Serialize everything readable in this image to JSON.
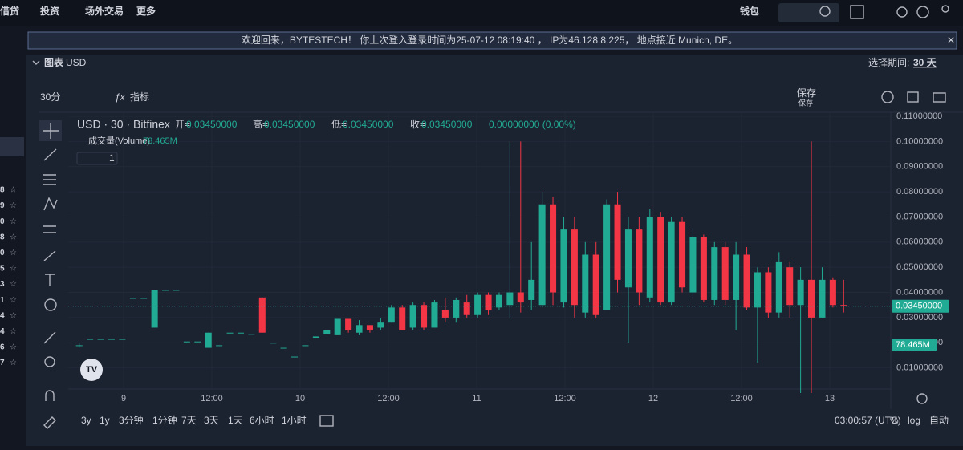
{
  "nav": {
    "items": [
      "借贷",
      "投资",
      "场外交易",
      "更多"
    ],
    "wallet": "钱包"
  },
  "banner": "欢迎回来，BYTESTECH！ 你上次登入登录时间为25-07-12 08:19:40 ， IP为46.128.8.225， 地点接近 Munich, DE。",
  "sidebar_digits": [
    "8",
    "9",
    "0",
    "8",
    "0",
    "5",
    "3",
    "1",
    "4",
    "4",
    "6",
    "7"
  ],
  "header": {
    "title": "图表",
    "currency": "USD",
    "period_label": "选择期间:",
    "period": "30 天"
  },
  "toolbar": {
    "interval": "30分",
    "indicators": "指标",
    "save": "保存",
    "save_sub": "保存"
  },
  "legend": {
    "symbol": "USD · 30 · Bitfinex",
    "open_label": "开=",
    "open": "0.03450000",
    "high_label": "高=",
    "high": "0.03450000",
    "low_label": "低=",
    "low": "0.03450000",
    "close_label": "收=",
    "close": "0.03450000",
    "change": "0.00000000 (0.00%)",
    "volume_label": "成交量(Volume)",
    "volume": "78.465M",
    "layers": "1"
  },
  "chart_data": {
    "type": "candlestick",
    "up_color": "#22ab94",
    "down_color": "#f23645",
    "ylim": [
      0,
      0.11
    ],
    "yticks": [
      {
        "value": 0.01,
        "label": "0.01000000"
      },
      {
        "value": 0.02,
        "label": "0.02000000"
      },
      {
        "value": 0.03,
        "label": "0.03000000"
      },
      {
        "value": 0.04,
        "label": "0.04000000"
      },
      {
        "value": 0.05,
        "label": "0.05000000"
      },
      {
        "value": 0.06,
        "label": "0.06000000"
      },
      {
        "value": 0.07,
        "label": "0.07000000"
      },
      {
        "value": 0.08,
        "label": "0.08000000"
      },
      {
        "value": 0.09,
        "label": "0.09000000"
      },
      {
        "value": 0.1,
        "label": "0.10000000"
      },
      {
        "value": 0.11,
        "label": "0.11000000"
      }
    ],
    "xlabels": [
      "9",
      "12:00",
      "10",
      "12:00",
      "11",
      "12:00",
      "12",
      "12:00",
      "13"
    ],
    "last_price": {
      "value": 0.0345,
      "label": "0.03450000"
    },
    "volume_tag": "78.465M",
    "candles": [
      [
        0.019,
        0.02,
        0.018,
        0.019
      ],
      [
        0.0215,
        0.0215,
        0.0215,
        0.0215
      ],
      [
        0.0215,
        0.0215,
        0.0215,
        0.0215
      ],
      [
        0.0215,
        0.0215,
        0.0215,
        0.0215
      ],
      [
        0.0215,
        0.0215,
        0.0215,
        0.0215
      ],
      [
        0.0378,
        0.0378,
        0.0378,
        0.0378
      ],
      [
        0.0378,
        0.0378,
        0.0378,
        0.0378
      ],
      [
        0.026,
        0.041,
        0.026,
        0.041
      ],
      [
        0.041,
        0.041,
        0.041,
        0.041
      ],
      [
        0.041,
        0.041,
        0.041,
        0.041
      ],
      [
        0.0205,
        0.0205,
        0.0205,
        0.0205
      ],
      [
        0.0205,
        0.0205,
        0.0205,
        0.0205
      ],
      [
        0.018,
        0.024,
        0.018,
        0.024
      ],
      [
        0.019,
        0.019,
        0.019,
        0.019
      ],
      [
        0.024,
        0.024,
        0.024,
        0.024
      ],
      [
        0.024,
        0.024,
        0.024,
        0.024
      ],
      [
        0.0235,
        0.0235,
        0.0235,
        0.0235
      ],
      [
        0.038,
        0.038,
        0.024,
        0.024
      ],
      [
        0.02,
        0.02,
        0.02,
        0.02
      ],
      [
        0.018,
        0.018,
        0.018,
        0.018
      ],
      [
        0.0145,
        0.0145,
        0.0145,
        0.0145
      ],
      [
        0.019,
        0.019,
        0.019,
        0.019
      ],
      [
        0.022,
        0.0225,
        0.022,
        0.0225
      ],
      [
        0.0235,
        0.025,
        0.0235,
        0.025
      ],
      [
        0.023,
        0.0295,
        0.023,
        0.0295
      ],
      [
        0.0295,
        0.0295,
        0.024,
        0.025
      ],
      [
        0.024,
        0.029,
        0.023,
        0.027
      ],
      [
        0.027,
        0.027,
        0.024,
        0.025
      ],
      [
        0.026,
        0.03,
        0.025,
        0.028
      ],
      [
        0.028,
        0.035,
        0.028,
        0.034
      ],
      [
        0.034,
        0.035,
        0.025,
        0.025
      ],
      [
        0.026,
        0.036,
        0.025,
        0.035
      ],
      [
        0.035,
        0.036,
        0.025,
        0.026
      ],
      [
        0.026,
        0.037,
        0.026,
        0.036
      ],
      [
        0.033,
        0.038,
        0.028,
        0.03
      ],
      [
        0.03,
        0.038,
        0.028,
        0.037
      ],
      [
        0.036,
        0.039,
        0.03,
        0.031
      ],
      [
        0.031,
        0.04,
        0.03,
        0.039
      ],
      [
        0.039,
        0.04,
        0.031,
        0.033
      ],
      [
        0.034,
        0.04,
        0.033,
        0.039
      ],
      [
        0.035,
        0.1,
        0.03,
        0.04
      ],
      [
        0.04,
        0.1,
        0.032,
        0.036
      ],
      [
        0.037,
        0.06,
        0.033,
        0.045
      ],
      [
        0.035,
        0.08,
        0.034,
        0.075
      ],
      [
        0.075,
        0.078,
        0.035,
        0.04
      ],
      [
        0.036,
        0.07,
        0.034,
        0.065
      ],
      [
        0.065,
        0.07,
        0.03,
        0.035
      ],
      [
        0.032,
        0.06,
        0.03,
        0.055
      ],
      [
        0.055,
        0.06,
        0.03,
        0.031
      ],
      [
        0.033,
        0.077,
        0.033,
        0.075
      ],
      [
        0.075,
        0.08,
        0.04,
        0.045
      ],
      [
        0.042,
        0.07,
        0.02,
        0.065
      ],
      [
        0.065,
        0.07,
        0.035,
        0.04
      ],
      [
        0.038,
        0.073,
        0.036,
        0.07
      ],
      [
        0.07,
        0.072,
        0.035,
        0.036
      ],
      [
        0.036,
        0.07,
        0.035,
        0.068
      ],
      [
        0.068,
        0.07,
        0.04,
        0.042
      ],
      [
        0.04,
        0.065,
        0.038,
        0.062
      ],
      [
        0.062,
        0.063,
        0.036,
        0.037
      ],
      [
        0.037,
        0.06,
        0.035,
        0.058
      ],
      [
        0.058,
        0.06,
        0.035,
        0.037
      ],
      [
        0.037,
        0.06,
        0.025,
        0.055
      ],
      [
        0.055,
        0.058,
        0.033,
        0.034
      ],
      [
        0.034,
        0.05,
        0.012,
        0.048
      ],
      [
        0.048,
        0.05,
        0.03,
        0.032
      ],
      [
        0.032,
        0.056,
        0.03,
        0.052
      ],
      [
        0.05,
        0.052,
        0.03,
        0.035
      ],
      [
        0.035,
        0.05,
        0,
        0.045
      ],
      [
        0.045,
        0.1,
        0,
        0.03
      ],
      [
        0.03,
        0.05,
        0.03,
        0.045
      ],
      [
        0.045,
        0.046,
        0.034,
        0.035
      ],
      [
        0.035,
        0.045,
        0.032,
        0.0345
      ]
    ]
  },
  "footer": {
    "ranges": [
      "3y",
      "1y",
      "3分钟",
      "1分钟",
      "7天",
      "3天",
      "1天",
      "6小时",
      "1小时"
    ],
    "clock": "03:00:57 (UTC)",
    "percent": "%",
    "log": "log",
    "auto": "自动"
  }
}
